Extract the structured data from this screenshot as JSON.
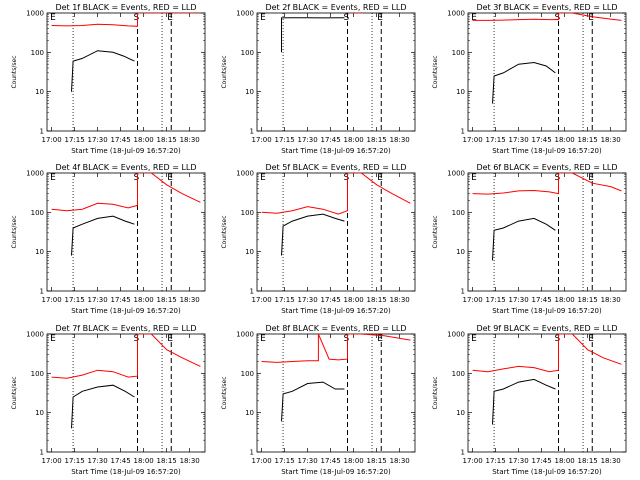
{
  "figure": {
    "background": "#ffffff",
    "colors": {
      "events": "#000000",
      "lld": "#ff0000",
      "axes": "#000000"
    }
  },
  "chart_data": [
    {
      "type": "line",
      "title": "Det 1f BLACK = Events, RED = LLD",
      "xlabel": "Start Time (18-Jul-09 16:57:20)",
      "ylabel": "Counts/sec",
      "xlim": [
        "16:57",
        "18:40"
      ],
      "ylim": [
        1,
        1000
      ],
      "yscale": "log",
      "xticks": [
        "17:00",
        "17:15",
        "17:30",
        "17:45",
        "18:00",
        "18:15",
        "18:30"
      ],
      "yticks": [
        "1",
        "10",
        "100",
        "1000"
      ],
      "markers": [
        {
          "label": "E",
          "time": "16:59",
          "style": "none"
        },
        {
          "label": "",
          "time": "17:14",
          "style": "dotted"
        },
        {
          "label": "S",
          "time": "17:56",
          "style": "dashed"
        },
        {
          "label": "",
          "time": "18:12",
          "style": "dotted"
        },
        {
          "label": "E",
          "time": "18:18",
          "style": "dashed"
        }
      ],
      "series": [
        {
          "name": "Events",
          "x": [
            "17:13",
            "17:14",
            "17:20",
            "17:30",
            "17:40",
            "17:47",
            "17:54"
          ],
          "y": [
            10,
            60,
            70,
            110,
            100,
            80,
            60
          ]
        },
        {
          "name": "LLD",
          "x": [
            "17:00",
            "17:10",
            "17:20",
            "17:30",
            "17:40",
            "17:50",
            "17:56",
            "17:56",
            "18:05",
            "18:18",
            "18:30",
            "18:37"
          ],
          "y": [
            480,
            470,
            480,
            520,
            500,
            470,
            460,
            1000,
            1000,
            1000,
            1000,
            1000
          ]
        }
      ]
    },
    {
      "type": "line",
      "title": "Det 2f BLACK = Events, RED = LLD",
      "xlabel": "Start Time (18-Jul-09 16:57:20)",
      "ylabel": "Counts/sec",
      "xlim": [
        "16:57",
        "18:40"
      ],
      "ylim": [
        1,
        1000
      ],
      "yscale": "log",
      "xticks": [
        "17:00",
        "17:15",
        "17:30",
        "17:45",
        "18:00",
        "18:15",
        "18:30"
      ],
      "yticks": [
        "1",
        "10",
        "100",
        "1000"
      ],
      "markers": [
        {
          "label": "E",
          "time": "16:59",
          "style": "none"
        },
        {
          "label": "",
          "time": "17:14",
          "style": "dotted"
        },
        {
          "label": "S",
          "time": "17:56",
          "style": "dashed"
        },
        {
          "label": "",
          "time": "18:12",
          "style": "dotted"
        },
        {
          "label": "E",
          "time": "18:18",
          "style": "dashed"
        }
      ],
      "series": [
        {
          "name": "Events",
          "x": [
            "17:13",
            "17:13",
            "17:20",
            "17:30",
            "17:40",
            "17:54"
          ],
          "y": [
            100,
            750,
            760,
            760,
            750,
            760
          ]
        },
        {
          "name": "LLD",
          "x": [
            "17:00",
            "17:10",
            "17:20",
            "17:30",
            "17:40",
            "17:50",
            "17:55",
            "17:58",
            "18:05",
            "18:15",
            "18:30",
            "18:37"
          ],
          "y": [
            1100,
            1100,
            1150,
            1150,
            1150,
            1150,
            1200,
            1000,
            1000,
            1200,
            1150,
            1100
          ]
        }
      ]
    },
    {
      "type": "line",
      "title": "Det 3f BLACK = Events, RED = LLD",
      "xlabel": "Start Time (18-Jul-09 16:57:20)",
      "ylabel": "Counts/sec",
      "xlim": [
        "16:57",
        "18:40"
      ],
      "ylim": [
        1,
        1000
      ],
      "yscale": "log",
      "xticks": [
        "17:00",
        "17:15",
        "17:30",
        "17:45",
        "18:00",
        "18:15",
        "18:30"
      ],
      "yticks": [
        "1",
        "10",
        "100",
        "1000"
      ],
      "markers": [
        {
          "label": "E",
          "time": "16:59",
          "style": "none"
        },
        {
          "label": "",
          "time": "17:14",
          "style": "dotted"
        },
        {
          "label": "S",
          "time": "17:56",
          "style": "dashed"
        },
        {
          "label": "",
          "time": "18:12",
          "style": "dotted"
        },
        {
          "label": "E",
          "time": "18:18",
          "style": "dashed"
        }
      ],
      "series": [
        {
          "name": "Events",
          "x": [
            "17:13",
            "17:14",
            "17:20",
            "17:30",
            "17:40",
            "17:48",
            "17:54"
          ],
          "y": [
            5,
            25,
            30,
            50,
            55,
            45,
            30
          ]
        },
        {
          "name": "LLD",
          "x": [
            "17:00",
            "17:10",
            "17:20",
            "17:30",
            "17:40",
            "17:50",
            "17:56",
            "17:56",
            "18:05",
            "18:18",
            "18:30",
            "18:37"
          ],
          "y": [
            650,
            650,
            660,
            680,
            690,
            680,
            680,
            1000,
            1000,
            800,
            700,
            650
          ]
        }
      ]
    },
    {
      "type": "line",
      "title": "Det 4f BLACK = Events, RED = LLD",
      "xlabel": "Start Time (18-Jul-09 16:57:20)",
      "ylabel": "Counts/sec",
      "xlim": [
        "16:57",
        "18:40"
      ],
      "ylim": [
        1,
        1000
      ],
      "yscale": "log",
      "xticks": [
        "17:00",
        "17:15",
        "17:30",
        "17:45",
        "18:00",
        "18:15",
        "18:30"
      ],
      "yticks": [
        "1",
        "10",
        "100",
        "1000"
      ],
      "markers": [
        {
          "label": "E",
          "time": "16:59",
          "style": "none"
        },
        {
          "label": "",
          "time": "17:14",
          "style": "dotted"
        },
        {
          "label": "S",
          "time": "17:56",
          "style": "dashed"
        },
        {
          "label": "",
          "time": "18:12",
          "style": "dotted"
        },
        {
          "label": "E",
          "time": "18:18",
          "style": "dashed"
        }
      ],
      "series": [
        {
          "name": "Events",
          "x": [
            "17:13",
            "17:14",
            "17:20",
            "17:30",
            "17:40",
            "17:48",
            "17:54"
          ],
          "y": [
            8,
            40,
            50,
            70,
            80,
            60,
            50
          ]
        },
        {
          "name": "LLD",
          "x": [
            "17:00",
            "17:10",
            "17:20",
            "17:30",
            "17:40",
            "17:50",
            "17:56",
            "17:56",
            "18:05",
            "18:15",
            "18:25",
            "18:37"
          ],
          "y": [
            120,
            110,
            120,
            170,
            160,
            130,
            150,
            1000,
            1000,
            500,
            300,
            180
          ]
        }
      ]
    },
    {
      "type": "line",
      "title": "Det 5f BLACK = Events, RED = LLD",
      "xlabel": "Start Time (18-Jul-09 16:57:20)",
      "ylabel": "Counts/sec",
      "xlim": [
        "16:57",
        "18:40"
      ],
      "ylim": [
        1,
        1000
      ],
      "yscale": "log",
      "xticks": [
        "17:00",
        "17:15",
        "17:30",
        "17:45",
        "18:00",
        "18:15",
        "18:30"
      ],
      "yticks": [
        "1",
        "10",
        "100",
        "1000"
      ],
      "markers": [
        {
          "label": "E",
          "time": "16:59",
          "style": "none"
        },
        {
          "label": "",
          "time": "17:14",
          "style": "dotted"
        },
        {
          "label": "S",
          "time": "17:56",
          "style": "dashed"
        },
        {
          "label": "",
          "time": "18:12",
          "style": "dotted"
        },
        {
          "label": "E",
          "time": "18:18",
          "style": "dashed"
        }
      ],
      "series": [
        {
          "name": "Events",
          "x": [
            "17:13",
            "17:14",
            "17:20",
            "17:30",
            "17:40",
            "17:48",
            "17:54"
          ],
          "y": [
            8,
            45,
            60,
            80,
            90,
            70,
            60
          ]
        },
        {
          "name": "LLD",
          "x": [
            "17:00",
            "17:10",
            "17:20",
            "17:30",
            "17:40",
            "17:50",
            "17:56",
            "17:56",
            "18:05",
            "18:15",
            "18:25",
            "18:37"
          ],
          "y": [
            100,
            95,
            110,
            140,
            120,
            90,
            110,
            1000,
            1000,
            500,
            300,
            170
          ]
        }
      ]
    },
    {
      "type": "line",
      "title": "Det 6f BLACK = Events, RED = LLD",
      "xlabel": "Start Time (18-Jul-09 16:57:20)",
      "ylabel": "Counts/sec",
      "xlim": [
        "16:57",
        "18:40"
      ],
      "ylim": [
        1,
        1000
      ],
      "yscale": "log",
      "xticks": [
        "17:00",
        "17:15",
        "17:30",
        "17:45",
        "18:00",
        "18:15",
        "18:30"
      ],
      "yticks": [
        "1",
        "10",
        "100",
        "1000"
      ],
      "markers": [
        {
          "label": "E",
          "time": "16:59",
          "style": "none"
        },
        {
          "label": "",
          "time": "17:14",
          "style": "dotted"
        },
        {
          "label": "S",
          "time": "17:56",
          "style": "dashed"
        },
        {
          "label": "",
          "time": "18:12",
          "style": "dotted"
        },
        {
          "label": "E",
          "time": "18:18",
          "style": "dashed"
        }
      ],
      "series": [
        {
          "name": "Events",
          "x": [
            "17:13",
            "17:14",
            "17:20",
            "17:30",
            "17:40",
            "17:48",
            "17:54"
          ],
          "y": [
            6,
            35,
            40,
            60,
            70,
            50,
            35
          ]
        },
        {
          "name": "LLD",
          "x": [
            "17:00",
            "17:10",
            "17:20",
            "17:30",
            "17:40",
            "17:50",
            "17:56",
            "17:56",
            "18:05",
            "18:18",
            "18:30",
            "18:37"
          ],
          "y": [
            300,
            290,
            310,
            350,
            360,
            330,
            300,
            1000,
            1000,
            550,
            450,
            350
          ]
        }
      ]
    },
    {
      "type": "line",
      "title": "Det 7f BLACK = Events, RED = LLD",
      "xlabel": "Start Time (18-Jul-09 16:57:20)",
      "ylabel": "Counts/sec",
      "xlim": [
        "16:57",
        "18:40"
      ],
      "ylim": [
        1,
        1000
      ],
      "yscale": "log",
      "xticks": [
        "17:00",
        "17:15",
        "17:30",
        "17:45",
        "18:00",
        "18:15",
        "18:30"
      ],
      "yticks": [
        "1",
        "10",
        "100",
        "1000"
      ],
      "markers": [
        {
          "label": "E",
          "time": "16:59",
          "style": "none"
        },
        {
          "label": "",
          "time": "17:14",
          "style": "dotted"
        },
        {
          "label": "S",
          "time": "17:56",
          "style": "dashed"
        },
        {
          "label": "",
          "time": "18:12",
          "style": "dotted"
        },
        {
          "label": "E",
          "time": "18:18",
          "style": "dashed"
        }
      ],
      "series": [
        {
          "name": "Events",
          "x": [
            "17:13",
            "17:14",
            "17:20",
            "17:30",
            "17:40",
            "17:48",
            "17:54"
          ],
          "y": [
            4,
            25,
            35,
            45,
            50,
            35,
            25
          ]
        },
        {
          "name": "LLD",
          "x": [
            "17:00",
            "17:10",
            "17:20",
            "17:30",
            "17:40",
            "17:50",
            "17:56",
            "17:56",
            "18:05",
            "18:15",
            "18:25",
            "18:37"
          ],
          "y": [
            80,
            75,
            90,
            120,
            110,
            80,
            85,
            1000,
            1000,
            400,
            250,
            150
          ]
        }
      ]
    },
    {
      "type": "line",
      "title": "Det 8f BLACK = Events, RED = LLD",
      "xlabel": "Start Time (18-Jul-09 16:57:20)",
      "ylabel": "Counts/sec",
      "xlim": [
        "16:57",
        "18:40"
      ],
      "ylim": [
        1,
        1000
      ],
      "yscale": "log",
      "xticks": [
        "17:00",
        "17:15",
        "17:30",
        "17:45",
        "18:00",
        "18:15",
        "18:30"
      ],
      "yticks": [
        "1",
        "10",
        "100",
        "1000"
      ],
      "markers": [
        {
          "label": "E",
          "time": "16:59",
          "style": "none"
        },
        {
          "label": "",
          "time": "17:14",
          "style": "dotted"
        },
        {
          "label": "S",
          "time": "17:56",
          "style": "dashed"
        },
        {
          "label": "",
          "time": "18:12",
          "style": "dotted"
        },
        {
          "label": "E",
          "time": "18:18",
          "style": "dashed"
        }
      ],
      "series": [
        {
          "name": "Events",
          "x": [
            "17:13",
            "17:14",
            "17:20",
            "17:30",
            "17:40",
            "17:48",
            "17:54"
          ],
          "y": [
            6,
            30,
            35,
            55,
            60,
            40,
            40
          ]
        },
        {
          "name": "LLD",
          "x": [
            "17:00",
            "17:10",
            "17:20",
            "17:30",
            "17:37",
            "17:37",
            "17:44",
            "17:50",
            "17:56",
            "17:56",
            "18:05",
            "18:20",
            "18:37"
          ],
          "y": [
            200,
            190,
            200,
            210,
            210,
            1000,
            230,
            220,
            230,
            1000,
            1000,
            900,
            700
          ]
        }
      ]
    },
    {
      "type": "line",
      "title": "Det 9f BLACK = Events, RED = LLD",
      "xlabel": "Start Time (18-Jul-09 16:57:20)",
      "ylabel": "Counts/sec",
      "xlim": [
        "16:57",
        "18:40"
      ],
      "ylim": [
        1,
        1000
      ],
      "yscale": "log",
      "xticks": [
        "17:00",
        "17:15",
        "17:30",
        "17:45",
        "18:00",
        "18:15",
        "18:30"
      ],
      "yticks": [
        "1",
        "10",
        "100",
        "1000"
      ],
      "markers": [
        {
          "label": "E",
          "time": "16:59",
          "style": "none"
        },
        {
          "label": "",
          "time": "17:14",
          "style": "dotted"
        },
        {
          "label": "S",
          "time": "17:56",
          "style": "dashed"
        },
        {
          "label": "",
          "time": "18:12",
          "style": "dotted"
        },
        {
          "label": "E",
          "time": "18:18",
          "style": "dashed"
        }
      ],
      "series": [
        {
          "name": "Events",
          "x": [
            "17:13",
            "17:14",
            "17:20",
            "17:30",
            "17:40",
            "17:48",
            "17:54"
          ],
          "y": [
            5,
            35,
            40,
            60,
            70,
            50,
            40
          ]
        },
        {
          "name": "LLD",
          "x": [
            "17:00",
            "17:10",
            "17:20",
            "17:30",
            "17:40",
            "17:50",
            "17:56",
            "17:56",
            "18:05",
            "18:15",
            "18:25",
            "18:37"
          ],
          "y": [
            120,
            110,
            130,
            150,
            140,
            110,
            120,
            1000,
            1000,
            400,
            250,
            170
          ]
        }
      ]
    }
  ]
}
